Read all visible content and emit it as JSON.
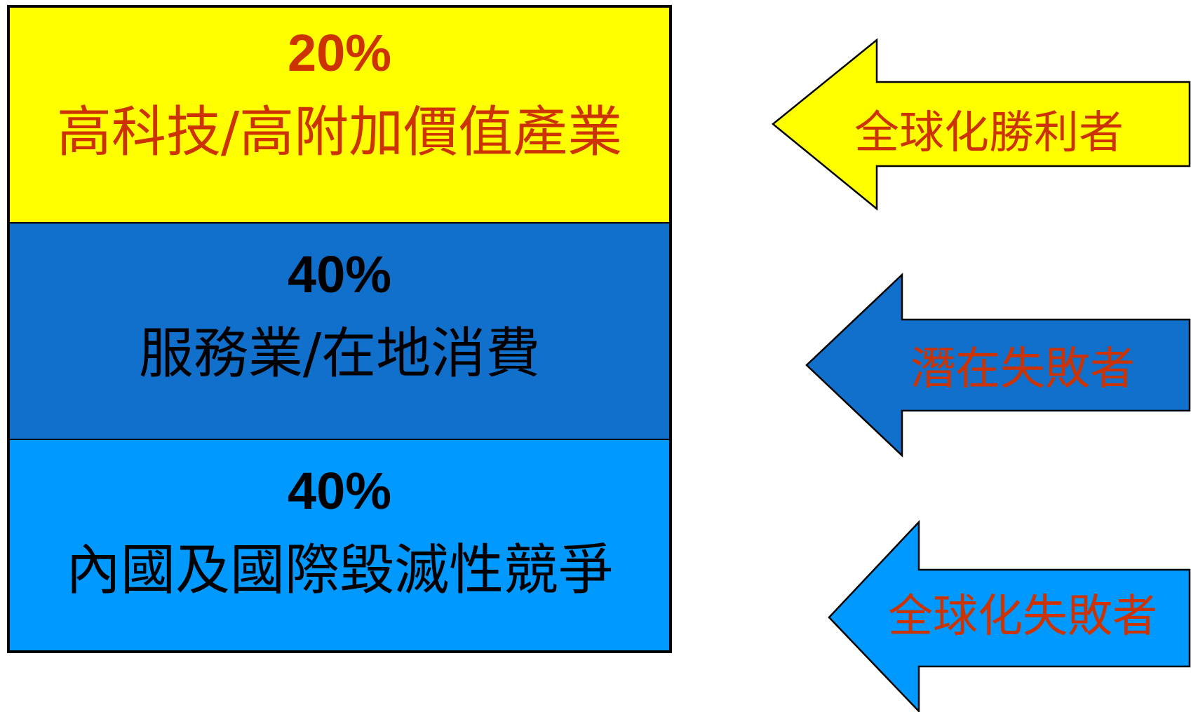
{
  "colors": {
    "tier_1": "#ffff00",
    "tier_2": "#1170cc",
    "tier_3": "#0099ff",
    "accent_text": "#cc3300",
    "dark_text": "#000000"
  },
  "tiers": [
    {
      "percent": "20%",
      "label": "高科技/高附加價值產業"
    },
    {
      "percent": "40%",
      "label": "服務業/在地消費"
    },
    {
      "percent": "40%",
      "label": "內國及國際毀滅性競爭"
    }
  ],
  "arrows": [
    {
      "label": "全球化勝利者"
    },
    {
      "label": "潛在失敗者"
    },
    {
      "label": "全球化失敗者"
    }
  ]
}
